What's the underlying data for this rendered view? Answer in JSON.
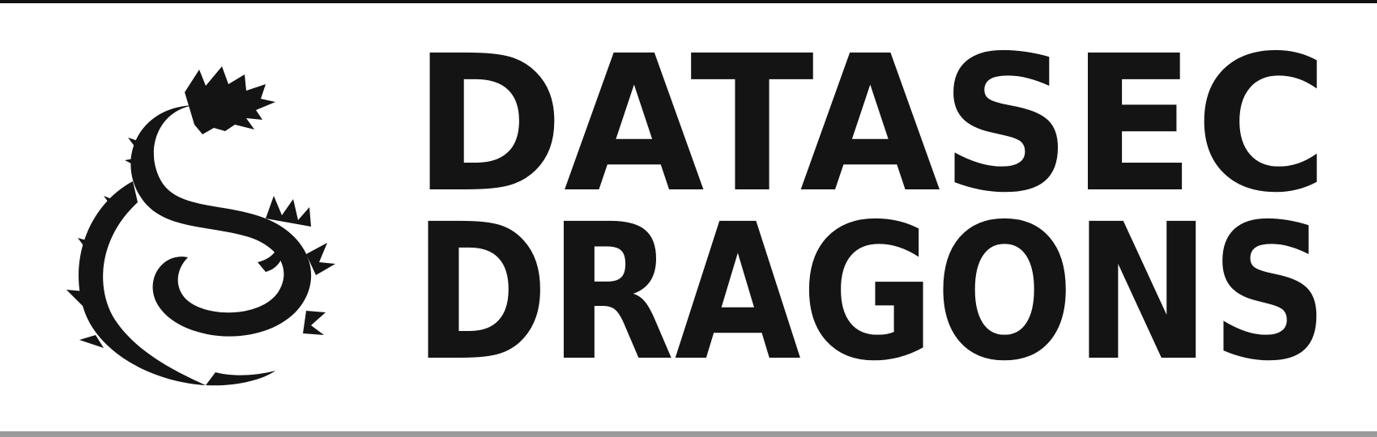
{
  "logo": {
    "line1": "DATASEC",
    "line2": "DRAGONS",
    "emblem_icon": "dragon-icon",
    "ink_color": "#141414",
    "background_color": "#ffffff"
  }
}
